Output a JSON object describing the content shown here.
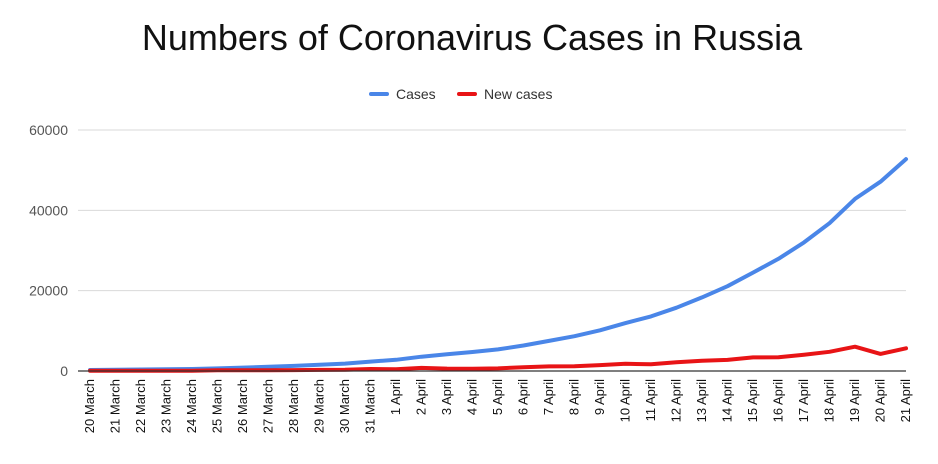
{
  "chart_data": {
    "type": "line",
    "title": "Numbers of Coronavirus Cases in Russia",
    "xlabel": "",
    "ylabel": "",
    "categories": [
      "20 March",
      "21 March",
      "22 March",
      "23 March",
      "24 March",
      "25 March",
      "26 March",
      "27 March",
      "28 March",
      "29 March",
      "30 March",
      "31 March",
      "1 April",
      "2 April",
      "3 April",
      "4 April",
      "5 April",
      "6 April",
      "7 April",
      "8 April",
      "9 April",
      "10 April",
      "11 April",
      "12 April",
      "13 April",
      "14 April",
      "15 April",
      "16 April",
      "17 April",
      "18 April",
      "19 April",
      "20 April",
      "21 April"
    ],
    "series": [
      {
        "name": "Cases",
        "color": "#4a86e8",
        "values": [
          253,
          306,
          367,
          438,
          495,
          658,
          840,
          1036,
          1264,
          1534,
          1836,
          2337,
          2777,
          3548,
          4149,
          4731,
          5389,
          6343,
          7497,
          8672,
          10131,
          11917,
          13584,
          15770,
          18328,
          21102,
          24490,
          27938,
          32008,
          36793,
          42853,
          47121,
          52763
        ]
      },
      {
        "name": "New cases",
        "color": "#e81416",
        "values": [
          54,
          53,
          61,
          71,
          57,
          163,
          182,
          196,
          228,
          270,
          302,
          501,
          440,
          771,
          601,
          582,
          658,
          954,
          1154,
          1175,
          1459,
          1786,
          1667,
          2186,
          2558,
          2774,
          3388,
          3448,
          4070,
          4785,
          6060,
          4268,
          5642
        ]
      }
    ],
    "ylim": [
      0,
      60000
    ],
    "yticks": [
      0,
      20000,
      40000,
      60000
    ],
    "grid": true,
    "legend": "top-center"
  }
}
